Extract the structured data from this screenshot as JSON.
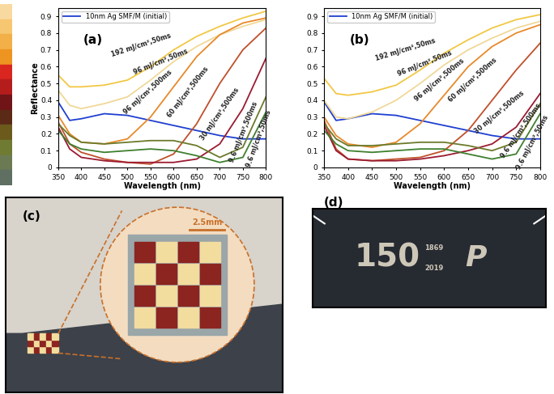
{
  "chart_data": [
    {
      "type": "line",
      "panel": "(a)",
      "x_label": "Wavelength (nm)",
      "y_label": "Reflectance",
      "x": [
        350,
        375,
        400,
        450,
        500,
        550,
        600,
        650,
        700,
        750,
        800
      ],
      "xlim": [
        350,
        800
      ],
      "xticks": [
        350,
        400,
        450,
        500,
        550,
        600,
        650,
        700,
        750,
        800
      ],
      "ylim": [
        0,
        0.95
      ],
      "yticks": [
        0,
        0.1,
        0.2,
        0.3,
        0.4,
        0.5,
        0.6,
        0.7,
        0.8,
        0.9
      ],
      "legend": "upper left",
      "series": [
        {
          "name": "10nm Ag SMF/M (initial)",
          "color": "#1f3fd0",
          "values": [
            0.39,
            0.28,
            0.29,
            0.32,
            0.31,
            0.28,
            0.25,
            0.22,
            0.19,
            0.17,
            0.17
          ]
        },
        {
          "label": "192 mJ/cm²,50ms",
          "color": "#f2c744",
          "values": [
            0.55,
            0.48,
            0.48,
            0.49,
            0.52,
            0.6,
            0.7,
            0.78,
            0.84,
            0.89,
            0.93
          ]
        },
        {
          "label": "96 mJ/cm²,50ms",
          "color": "#f0d898",
          "values": [
            0.46,
            0.37,
            0.35,
            0.38,
            0.42,
            0.52,
            0.63,
            0.72,
            0.79,
            0.84,
            0.88
          ]
        },
        {
          "label": "96 mJ/cm²,500ms",
          "color": "#e8892a",
          "values": [
            0.31,
            0.2,
            0.15,
            0.14,
            0.17,
            0.3,
            0.48,
            0.66,
            0.79,
            0.86,
            0.89
          ]
        },
        {
          "label": "60 mJ/cm²,500ms",
          "color": "#c0502a",
          "values": [
            0.27,
            0.14,
            0.09,
            0.05,
            0.03,
            0.02,
            0.08,
            0.26,
            0.5,
            0.7,
            0.83
          ]
        },
        {
          "label": "30 mJ/cm²,500ms",
          "color": "#9b1b30",
          "values": [
            0.24,
            0.11,
            0.06,
            0.04,
            0.03,
            0.03,
            0.03,
            0.05,
            0.14,
            0.35,
            0.65
          ]
        },
        {
          "label": "9.6 mJ/cm²,500ms",
          "color": "#6b7a2a",
          "values": [
            0.26,
            0.19,
            0.15,
            0.14,
            0.15,
            0.16,
            0.16,
            0.13,
            0.06,
            0.12,
            0.42
          ]
        },
        {
          "label": "9.6 mJ/cm²,50ms",
          "color": "#3f7f2f",
          "values": [
            0.22,
            0.14,
            0.11,
            0.09,
            0.1,
            0.11,
            0.1,
            0.07,
            0.03,
            0.06,
            0.33
          ]
        }
      ]
    },
    {
      "type": "line",
      "panel": "(b)",
      "x_label": "Wavelength (nm)",
      "x": [
        350,
        375,
        400,
        450,
        500,
        550,
        600,
        650,
        700,
        750,
        800
      ],
      "xlim": [
        350,
        800
      ],
      "xticks": [
        350,
        400,
        450,
        500,
        550,
        600,
        650,
        700,
        750,
        800
      ],
      "ylim": [
        0,
        0.95
      ],
      "yticks": [
        0,
        0.1,
        0.2,
        0.3,
        0.4,
        0.5,
        0.6,
        0.7,
        0.8,
        0.9
      ],
      "legend": "upper left",
      "series": [
        {
          "name": "10nm Ag SMF/M (initial)",
          "color": "#1f3fd0",
          "values": [
            0.39,
            0.28,
            0.29,
            0.32,
            0.31,
            0.28,
            0.25,
            0.22,
            0.19,
            0.17,
            0.17
          ]
        },
        {
          "label": "192 mJ/cm²,50ms",
          "color": "#f2c744",
          "values": [
            0.53,
            0.44,
            0.43,
            0.45,
            0.49,
            0.58,
            0.68,
            0.76,
            0.83,
            0.88,
            0.91
          ]
        },
        {
          "label": "96 mJ/cm²,50ms",
          "color": "#f0d898",
          "values": [
            0.4,
            0.3,
            0.29,
            0.33,
            0.4,
            0.5,
            0.61,
            0.7,
            0.77,
            0.83,
            0.87
          ]
        },
        {
          "label": "96 mJ/cm²,500ms",
          "color": "#e8892a",
          "values": [
            0.3,
            0.19,
            0.14,
            0.12,
            0.15,
            0.26,
            0.43,
            0.6,
            0.72,
            0.8,
            0.85
          ]
        },
        {
          "label": "60 mJ/cm²,500ms",
          "color": "#c0502a",
          "values": [
            0.28,
            0.11,
            0.05,
            0.04,
            0.05,
            0.06,
            0.1,
            0.22,
            0.4,
            0.58,
            0.74
          ]
        },
        {
          "label": "30 mJ/cm²,500ms",
          "color": "#9b1b30",
          "values": [
            0.25,
            0.1,
            0.05,
            0.04,
            0.04,
            0.05,
            0.07,
            0.1,
            0.14,
            0.24,
            0.44
          ]
        },
        {
          "label": "9.6 mJ/cm²,500ms",
          "color": "#6b7a2a",
          "values": [
            0.26,
            0.17,
            0.13,
            0.13,
            0.14,
            0.15,
            0.15,
            0.13,
            0.1,
            0.15,
            0.38
          ]
        },
        {
          "label": "9.6 mJ/cm²,50ms",
          "color": "#3f7f2f",
          "values": [
            0.22,
            0.14,
            0.1,
            0.09,
            0.1,
            0.11,
            0.11,
            0.08,
            0.05,
            0.08,
            0.32
          ]
        }
      ]
    }
  ],
  "swatches": {
    "colors": [
      "#f8d9a0",
      "#f6c670",
      "#f3b048",
      "#ee9420",
      "#d9261f",
      "#b51d1d",
      "#701418",
      "#5a2a16",
      "#6b5a1c",
      "#6f7a32",
      "#6c7a54",
      "#5f6f62"
    ]
  },
  "photos": {
    "c": {
      "label": "(c)",
      "scale_bar": "2.5mm",
      "colors": {
        "background": "#d8d3cb",
        "plate": "#3c414a",
        "circle": "#f3dcc0",
        "inset": "#9aa6a8",
        "light": "#f2dc9e",
        "dark": "#8c2420",
        "accent": "#c8702a"
      }
    },
    "d": {
      "label": "(d)",
      "number": "150",
      "years": [
        "1869",
        "2019"
      ],
      "letter": "P",
      "colors": {
        "plate": "#262a31",
        "engraving": "#cdc7b8"
      }
    }
  }
}
